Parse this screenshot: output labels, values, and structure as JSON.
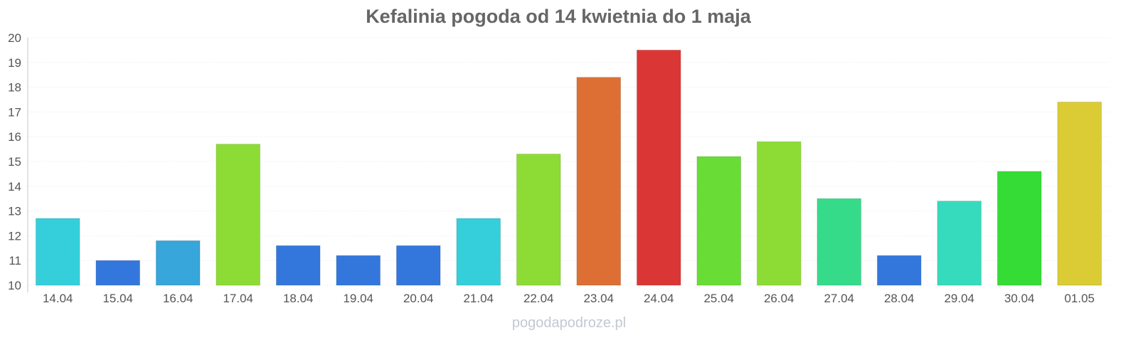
{
  "chart_data": {
    "type": "bar",
    "title": "Kefalinia pogoda od 14 kwietnia do 1 maja",
    "xlabel": "",
    "ylabel": "",
    "ylim": [
      10,
      20
    ],
    "yticks": [
      10,
      11,
      12,
      13,
      14,
      15,
      16,
      17,
      18,
      19,
      20
    ],
    "grid": true,
    "categories": [
      "14.04",
      "15.04",
      "16.04",
      "17.04",
      "18.04",
      "19.04",
      "20.04",
      "21.04",
      "22.04",
      "23.04",
      "24.04",
      "25.04",
      "26.04",
      "27.04",
      "28.04",
      "29.04",
      "30.04",
      "01.05"
    ],
    "values": [
      12.7,
      11.0,
      11.8,
      15.7,
      11.6,
      11.2,
      11.6,
      12.7,
      15.3,
      18.4,
      19.5,
      15.2,
      15.8,
      13.5,
      11.2,
      13.4,
      14.6,
      17.4
    ],
    "colors": [
      "#35cfdb",
      "#3477dc",
      "#37a6da",
      "#8ddc35",
      "#3477dc",
      "#3477dc",
      "#3477dc",
      "#35cfdb",
      "#8ddc35",
      "#dd6f35",
      "#db3636",
      "#69dc35",
      "#8ddc35",
      "#36db8a",
      "#3477dc",
      "#36dbbd",
      "#35dc36",
      "#dbcb35"
    ]
  },
  "watermark": "pogodapodroze.pl"
}
